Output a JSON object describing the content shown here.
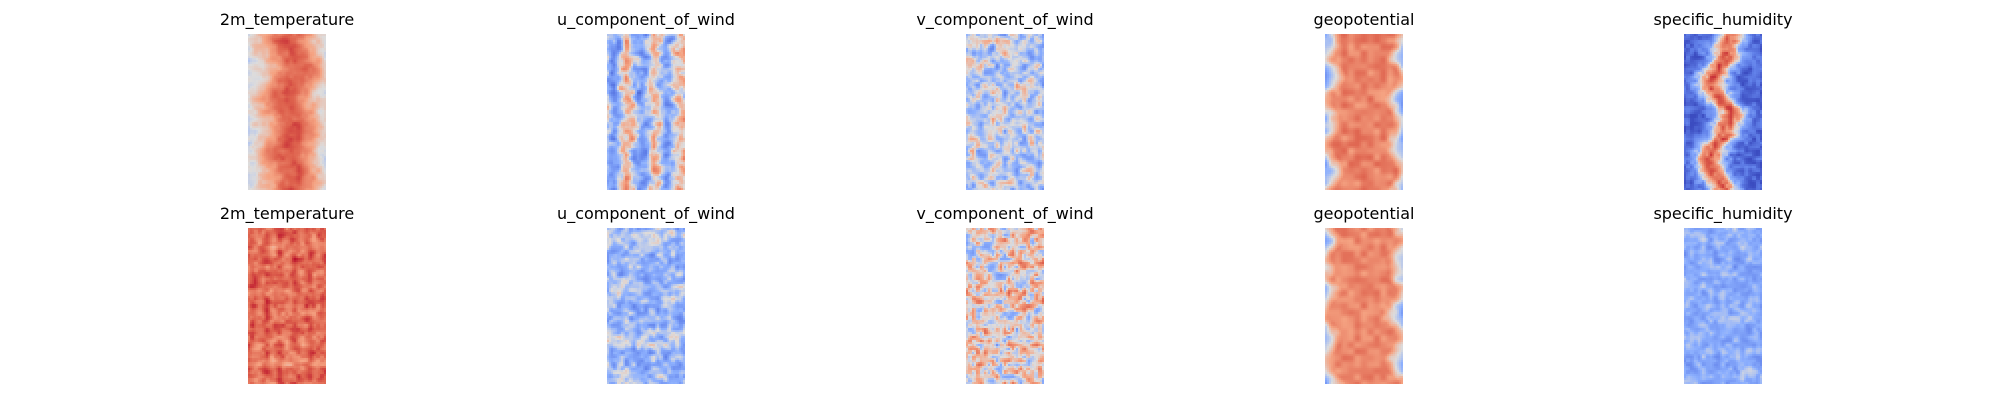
{
  "figure": {
    "rows": [
      {
        "panels": [
          {
            "title": "2m_temperature",
            "pattern": "temp_row0"
          },
          {
            "title": "u_component_of_wind",
            "pattern": "u_row0"
          },
          {
            "title": "v_component_of_wind",
            "pattern": "v_row0"
          },
          {
            "title": "geopotential",
            "pattern": "geo_row0"
          },
          {
            "title": "specific_humidity",
            "pattern": "hum_row0"
          }
        ]
      },
      {
        "panels": [
          {
            "title": "2m_temperature",
            "pattern": "temp_row1"
          },
          {
            "title": "u_component_of_wind",
            "pattern": "u_row1"
          },
          {
            "title": "v_component_of_wind",
            "pattern": "v_row1"
          },
          {
            "title": "geopotential",
            "pattern": "geo_row1"
          },
          {
            "title": "specific_humidity",
            "pattern": "hum_row1"
          }
        ]
      }
    ]
  },
  "chart_data": {
    "type": "heatmap",
    "colormap": "coolwarm",
    "colors": {
      "cold": "#3b4cc0",
      "neutral": "#dddcdc",
      "warm": "#b40426"
    },
    "axes_visible": false,
    "grid": false,
    "rows": 2,
    "cols": 5
  }
}
